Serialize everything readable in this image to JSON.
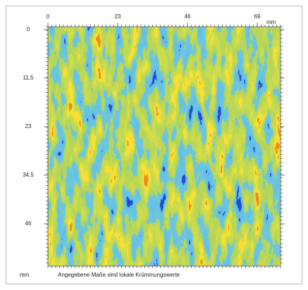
{
  "chart_data": {
    "type": "heatmap",
    "xlim": [
      0,
      69
    ],
    "xticks": [
      0,
      23,
      46,
      69
    ],
    "xlabel": "mm",
    "ylim": [
      0,
      56
    ],
    "yticks": [
      0,
      {
        "value": 11.5,
        "label": "11,5"
      },
      23,
      {
        "value": 34.5,
        "label": "34,5"
      },
      46
    ],
    "ylabel": "mm",
    "note": "Angegebene Maße sind lokale Krümmungswerte"
  }
}
